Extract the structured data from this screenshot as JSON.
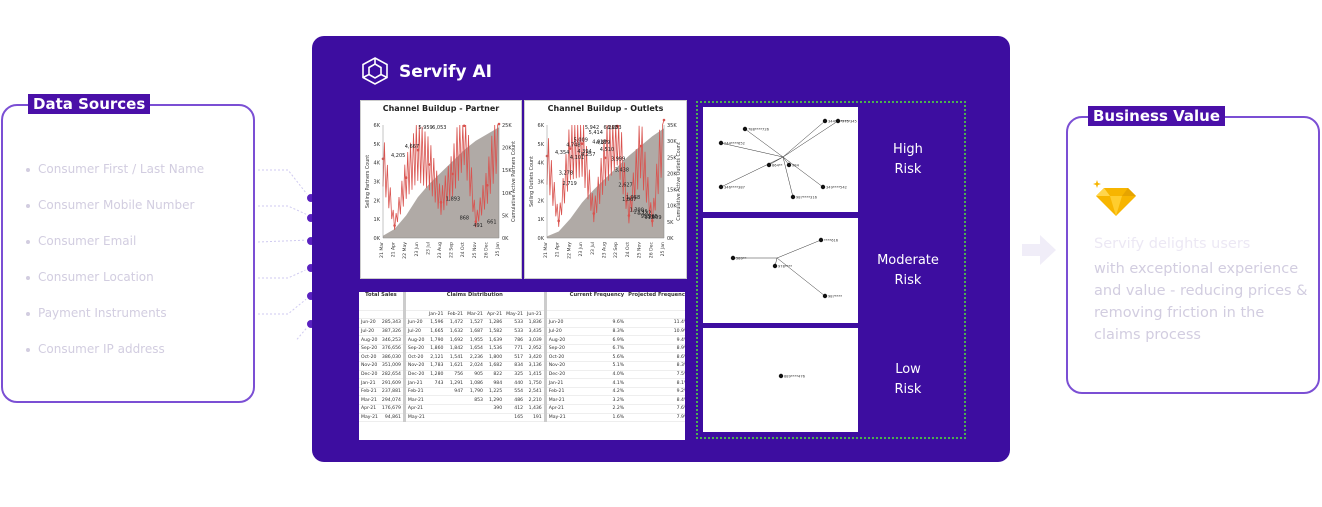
{
  "data_sources": {
    "title": "Data Sources",
    "items": [
      "Consumer First / Last Name",
      "Consumer Mobile Number",
      "Consumer Email",
      "Consumer Location",
      "Payment Instruments",
      "Consumer IP address"
    ]
  },
  "brand": {
    "name": "Servify AI"
  },
  "charts": {
    "partner": {
      "title": "Channel Buildup - Partner",
      "ylabel_left": "Selling Partners Count",
      "ylabel_right": "Cumulative Active Partners Count",
      "left_ticks": [
        "6K",
        "5K",
        "4K",
        "3K",
        "2K",
        "1K",
        "0K"
      ],
      "right_ticks": [
        "25K",
        "20K",
        "15K",
        "10K",
        "5K",
        "0K"
      ],
      "x_ticks": [
        "21 Mar",
        "21 Apr",
        "22 May",
        "23 Jun",
        "23 Jul",
        "23 Aug",
        "22 Sep",
        "24 Oct",
        "25 Nov",
        "26 Dec",
        "25 Jan"
      ],
      "labels": [
        "4,205",
        "4,667",
        "5,959",
        "6,053",
        "1,893",
        "868",
        "491",
        "661"
      ]
    },
    "outlets": {
      "title": "Channel Buildup - Outlets",
      "ylabel_left": "Selling Outlets Count",
      "ylabel_right": "Cumulative Active Outlets Count",
      "left_ticks": [
        "6K",
        "5K",
        "4K",
        "3K",
        "2K",
        "1K",
        "0K"
      ],
      "right_ticks": [
        "35K",
        "30K",
        "25K",
        "20K",
        "15K",
        "10K",
        "5K",
        "0K"
      ],
      "x_ticks": [
        "21 Mar",
        "21 Apr",
        "22 May",
        "23 Jun",
        "23 Jul",
        "23 Aug",
        "22 Sep",
        "24 Oct",
        "25 Nov",
        "26 Dec",
        "25 Jan"
      ],
      "labels": [
        "4,354",
        "3,278",
        "2,719",
        "4,748",
        "4,101",
        "5,009",
        "4,394",
        "4,257",
        "5,942",
        "5,414",
        "4,918",
        "4,879",
        "4,510",
        "6,263",
        "6,203",
        "3,999",
        "3,438",
        "2,627",
        "1,867",
        "1,958",
        "1,300",
        "1,195",
        "1,132",
        "955",
        "912",
        "965",
        "909"
      ]
    }
  },
  "chart_data": [
    {
      "type": "line",
      "title": "Channel Buildup - Partner",
      "ylabel": "Selling Partners Count",
      "y2label": "Cumulative Active Partners Count",
      "x": [
        "21 Mar",
        "21 Apr",
        "22 May",
        "23 Jun",
        "23 Jul",
        "23 Aug",
        "22 Sep",
        "24 Oct",
        "25 Nov",
        "26 Dec",
        "25 Jan"
      ],
      "ylim": [
        0,
        6000
      ],
      "y2lim": [
        0,
        25000
      ],
      "series": [
        {
          "values": [
            4205,
            661,
            3200,
            4667,
            3900,
            1893,
            3400,
            5959,
            868,
            2800,
            6053
          ]
        },
        {
          "values": [
            491,
            2000,
            5000,
            9000,
            12000,
            14500,
            17000,
            19500,
            21500,
            23000,
            24500
          ]
        }
      ]
    },
    {
      "type": "line",
      "title": "Channel Buildup - Outlets",
      "ylabel": "Selling Outlets Count",
      "y2label": "Cumulative Active Outlets Count",
      "x": [
        "21 Mar",
        "21 Apr",
        "22 May",
        "23 Jun",
        "23 Jul",
        "23 Aug",
        "22 Sep",
        "24 Oct",
        "25 Nov",
        "26 Dec",
        "25 Jan"
      ],
      "ylim": [
        0,
        6000
      ],
      "y2lim": [
        0,
        35000
      ],
      "series": [
        {
          "values": [
            4354,
            912,
            4748,
            5009,
            1300,
            4257,
            5942,
            1195,
            4879,
            909,
            6263
          ]
        },
        {
          "values": [
            500,
            2000,
            6000,
            11000,
            15000,
            18500,
            22000,
            25500,
            28500,
            31500,
            34000
          ]
        }
      ]
    }
  ],
  "table": {
    "headers": {
      "total_sales": "Total Sales",
      "claims": "Claims Distribution",
      "current": "Current Frequency",
      "projected": "Projected Frequency"
    },
    "claim_months": [
      "Jan-21",
      "Feb-21",
      "Mar-21",
      "Apr-21",
      "May-21",
      "Jun-21"
    ],
    "rows": [
      [
        "Jun-20",
        "285,343",
        "Jun-20",
        "1,596",
        "1,472",
        "1,527",
        "1,286",
        "533",
        "1,836",
        "Jun-20",
        "9.6%",
        "11.4%"
      ],
      [
        "Jul-20",
        "387,326",
        "Jul-20",
        "1,665",
        "1,632",
        "1,687",
        "1,582",
        "533",
        "3,435",
        "Jul-20",
        "8.3%",
        "10.9%"
      ],
      [
        "Aug-20",
        "346,253",
        "Aug-20",
        "1,790",
        "1,692",
        "1,955",
        "1,639",
        "786",
        "3,039",
        "Aug-20",
        "6.9%",
        "9.4%"
      ],
      [
        "Sep-20",
        "376,656",
        "Sep-20",
        "1,860",
        "1,842",
        "1,654",
        "1,536",
        "771",
        "2,952",
        "Sep-20",
        "6.7%",
        "8.9%"
      ],
      [
        "Oct-20",
        "386,030",
        "Oct-20",
        "2,121",
        "1,541",
        "2,236",
        "1,800",
        "517",
        "3,420",
        "Oct-20",
        "5.6%",
        "8.6%"
      ],
      [
        "Nov-20",
        "351,009",
        "Nov-20",
        "1,783",
        "1,621",
        "2,024",
        "1,682",
        "834",
        "3,136",
        "Nov-20",
        "5.1%",
        "8.3%"
      ],
      [
        "Dec-20",
        "282,654",
        "Dec-20",
        "1,280",
        "756",
        "905",
        "822",
        "325",
        "1,415",
        "Dec-20",
        "4.0%",
        "7.5%"
      ],
      [
        "Jan-21",
        "291,609",
        "Jan-21",
        "743",
        "1,291",
        "1,086",
        "984",
        "440",
        "1,750",
        "Jan-21",
        "4.1%",
        "8.1%"
      ],
      [
        "Feb-21",
        "237,881",
        "Feb-21",
        "",
        "947",
        "1,790",
        "1,225",
        "554",
        "2,541",
        "Feb-21",
        "4.2%",
        "9.2%"
      ],
      [
        "Mar-21",
        "294,074",
        "Mar-21",
        "",
        "",
        "853",
        "1,290",
        "486",
        "2,210",
        "Mar-21",
        "3.2%",
        "8.4%"
      ],
      [
        "Apr-21",
        "176,679",
        "Apr-21",
        "",
        "",
        "",
        "390",
        "412",
        "1,436",
        "Apr-21",
        "2.2%",
        "7.6%"
      ],
      [
        "May-21",
        "94,861",
        "May-21",
        "",
        "",
        "",
        "",
        "165",
        "191",
        "May-21",
        "1.6%",
        "7.9%"
      ]
    ]
  },
  "risks": [
    {
      "label_1": "High",
      "label_2": "Risk",
      "nodes": [
        "788****726",
        "344****975",
        "*****345",
        "244****652",
        "864**",
        "984",
        "346****387",
        "987****316",
        "349****542"
      ]
    },
    {
      "label_1": "Moderate",
      "label_2": "Risk",
      "nodes": [
        "589**",
        "978****",
        "****616",
        "987****"
      ]
    },
    {
      "label_1": "Low",
      "label_2": "Risk",
      "nodes": [
        "889****476"
      ]
    }
  ],
  "business_value": {
    "title": "Business Value",
    "faint_line": "Servify delights users",
    "text": "with exceptional experience and value - reducing prices & removing friction in the claims process"
  },
  "colors": {
    "panel": "#3d0da0",
    "accent": "#4a10a8",
    "border": "#7b4fd4",
    "chart_line": "#d9534f",
    "chart_area": "#b0aaa6",
    "diamond": "#f7b500",
    "dotted": "#4caf50"
  }
}
